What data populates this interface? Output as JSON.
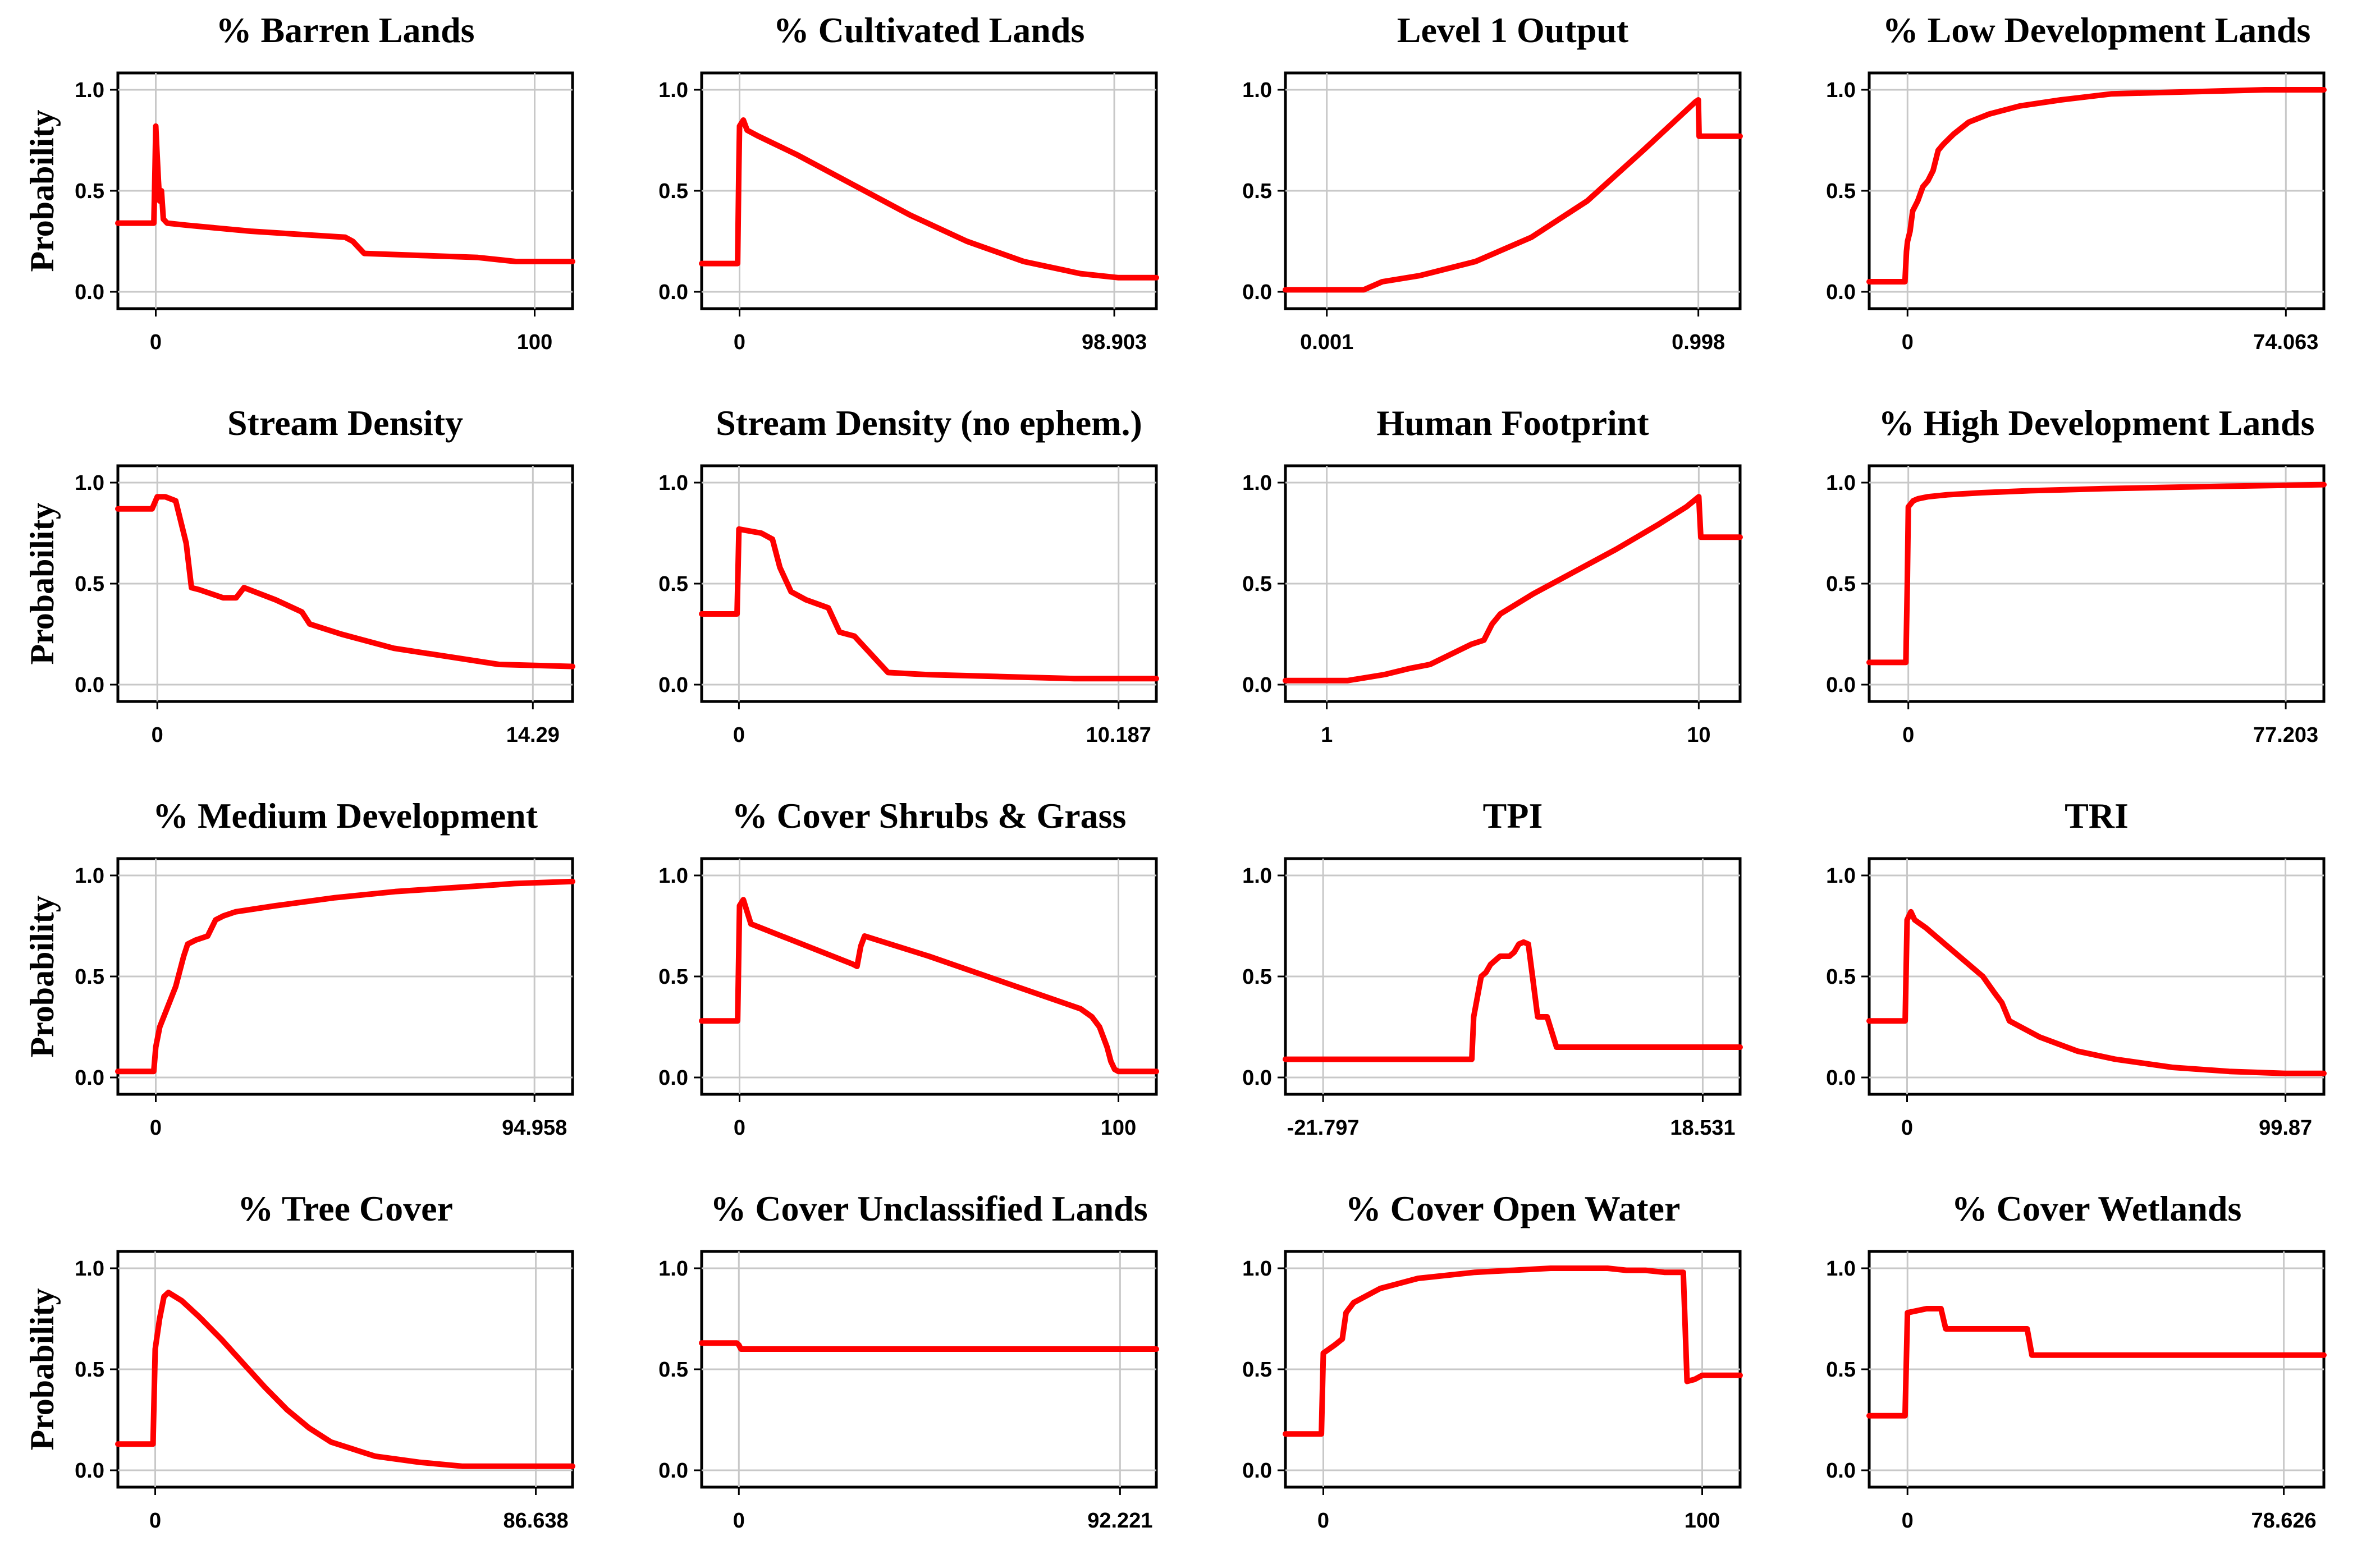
{
  "y_axis_label": "Probability",
  "y_ticks": [
    "0.0",
    "0.5",
    "1.0"
  ],
  "colors": {
    "curve": "#ff0000",
    "frame": "#000000",
    "grid": "#c8c8c8"
  },
  "chart_data": [
    {
      "type": "line",
      "title": "% Barren Lands",
      "x_ticks": [
        "0",
        "100"
      ],
      "ylabel": "Probability",
      "xlim": [
        -10,
        110
      ],
      "ylim": [
        0,
        1
      ],
      "x": [
        -10,
        -0.5,
        -0.2,
        0,
        0.3,
        0.7,
        1,
        1.5,
        2,
        3,
        8,
        25,
        50,
        52,
        55,
        70,
        85,
        95,
        110
      ],
      "y": [
        0.34,
        0.34,
        0.6,
        0.82,
        0.7,
        0.55,
        0.45,
        0.5,
        0.36,
        0.34,
        0.33,
        0.3,
        0.27,
        0.25,
        0.19,
        0.18,
        0.17,
        0.15,
        0.15
      ]
    },
    {
      "type": "line",
      "title": "% Cultivated Lands",
      "x_ticks": [
        "0",
        "98.903"
      ],
      "ylabel": "",
      "xlim": [
        -10,
        110
      ],
      "ylim": [
        0,
        1
      ],
      "x": [
        -10,
        -0.5,
        -0.2,
        0,
        1,
        2,
        5,
        15,
        30,
        45,
        60,
        75,
        90,
        100,
        110
      ],
      "y": [
        0.14,
        0.14,
        0.6,
        0.82,
        0.85,
        0.8,
        0.77,
        0.68,
        0.53,
        0.38,
        0.25,
        0.15,
        0.09,
        0.07,
        0.07
      ]
    },
    {
      "type": "line",
      "title": "Level 1 Output",
      "x_ticks": [
        "0.001",
        "0.998"
      ],
      "ylabel": "",
      "xlim": [
        -0.11,
        1.11
      ],
      "ylim": [
        0,
        1
      ],
      "x": [
        -0.11,
        0.1,
        0.15,
        0.25,
        0.4,
        0.55,
        0.7,
        0.85,
        0.99,
        0.998,
        1.0,
        1.11
      ],
      "y": [
        0.01,
        0.01,
        0.05,
        0.08,
        0.15,
        0.27,
        0.45,
        0.7,
        0.94,
        0.95,
        0.77,
        0.77
      ]
    },
    {
      "type": "line",
      "title": "% Low Development Lands",
      "x_ticks": [
        "0",
        "74.063"
      ],
      "ylabel": "",
      "xlim": [
        -7.5,
        81.5
      ],
      "ylim": [
        0,
        1
      ],
      "x": [
        -7.5,
        -0.5,
        -0.2,
        0,
        0.5,
        1,
        2,
        3,
        4,
        5,
        6,
        7,
        9,
        12,
        16,
        22,
        30,
        40,
        55,
        70,
        81.5
      ],
      "y": [
        0.05,
        0.05,
        0.2,
        0.25,
        0.3,
        0.4,
        0.45,
        0.52,
        0.55,
        0.6,
        0.7,
        0.73,
        0.78,
        0.84,
        0.88,
        0.92,
        0.95,
        0.98,
        0.99,
        1.0,
        1.0
      ]
    },
    {
      "type": "line",
      "title": "Stream Density",
      "x_ticks": [
        "0",
        "14.29"
      ],
      "ylabel": "Probability",
      "xlim": [
        -1.5,
        15.8
      ],
      "ylim": [
        0,
        1
      ],
      "x": [
        -1.5,
        -0.2,
        0,
        0.3,
        0.7,
        1.1,
        1.3,
        1.6,
        2.5,
        3,
        3.3,
        4.5,
        5.5,
        5.8,
        7,
        9,
        11,
        13,
        15.8
      ],
      "y": [
        0.87,
        0.87,
        0.93,
        0.93,
        0.91,
        0.7,
        0.48,
        0.47,
        0.43,
        0.43,
        0.48,
        0.42,
        0.36,
        0.3,
        0.25,
        0.18,
        0.14,
        0.1,
        0.09
      ]
    },
    {
      "type": "line",
      "title": "Stream Density (no ephem.)",
      "x_ticks": [
        "0",
        "10.187"
      ],
      "ylabel": "",
      "xlim": [
        -1,
        11.2
      ],
      "ylim": [
        0,
        1
      ],
      "x": [
        -1,
        -0.05,
        0,
        0.3,
        0.6,
        0.9,
        1.1,
        1.4,
        1.8,
        2.1,
        2.4,
        2.7,
        3.1,
        3.3,
        4,
        5,
        7,
        9,
        11.2
      ],
      "y": [
        0.35,
        0.35,
        0.77,
        0.76,
        0.75,
        0.72,
        0.58,
        0.46,
        0.42,
        0.4,
        0.38,
        0.26,
        0.24,
        0.2,
        0.06,
        0.05,
        0.04,
        0.03,
        0.03
      ]
    },
    {
      "type": "line",
      "title": "Human Footprint",
      "x_ticks": [
        "1",
        "10"
      ],
      "ylabel": "",
      "xlim": [
        0,
        11
      ],
      "ylim": [
        0,
        1
      ],
      "x": [
        0,
        1.5,
        2.4,
        3,
        3.5,
        4,
        4.5,
        4.8,
        5,
        5.2,
        6,
        7,
        8,
        9,
        9.7,
        10,
        10.05,
        11
      ],
      "y": [
        0.02,
        0.02,
        0.05,
        0.08,
        0.1,
        0.15,
        0.2,
        0.22,
        0.3,
        0.35,
        0.45,
        0.56,
        0.67,
        0.79,
        0.88,
        0.93,
        0.73,
        0.73
      ]
    },
    {
      "type": "line",
      "title": "% High Development Lands",
      "x_ticks": [
        "0",
        "77.203"
      ],
      "ylabel": "",
      "xlim": [
        -8,
        85
      ],
      "ylim": [
        0,
        1
      ],
      "x": [
        -8,
        -0.5,
        -0.2,
        0,
        1,
        2,
        4,
        8,
        15,
        25,
        40,
        60,
        85
      ],
      "y": [
        0.11,
        0.11,
        0.5,
        0.88,
        0.91,
        0.92,
        0.93,
        0.94,
        0.95,
        0.96,
        0.97,
        0.98,
        0.99
      ]
    },
    {
      "type": "line",
      "title": "% Medium  Development",
      "x_ticks": [
        "0",
        "94.958"
      ],
      "ylabel": "Probability",
      "xlim": [
        -9.5,
        104.5
      ],
      "ylim": [
        0,
        1
      ],
      "x": [
        -9.5,
        -0.5,
        0,
        1,
        2,
        3,
        5,
        7,
        8,
        10,
        13,
        15,
        17,
        20,
        30,
        45,
        60,
        75,
        90,
        104.5
      ],
      "y": [
        0.03,
        0.03,
        0.15,
        0.25,
        0.3,
        0.35,
        0.45,
        0.6,
        0.66,
        0.68,
        0.7,
        0.78,
        0.8,
        0.82,
        0.85,
        0.89,
        0.92,
        0.94,
        0.96,
        0.97
      ]
    },
    {
      "type": "line",
      "title": "%  Cover Shrubs & Grass",
      "x_ticks": [
        "0",
        "100"
      ],
      "ylabel": "",
      "xlim": [
        -10,
        110
      ],
      "ylim": [
        0,
        1
      ],
      "x": [
        -10,
        -0.5,
        0,
        1,
        2,
        3,
        30,
        31,
        32,
        33,
        50,
        70,
        90,
        93,
        95,
        97,
        98,
        99,
        100,
        110
      ],
      "y": [
        0.28,
        0.28,
        0.85,
        0.88,
        0.82,
        0.76,
        0.56,
        0.55,
        0.65,
        0.7,
        0.6,
        0.47,
        0.34,
        0.3,
        0.25,
        0.15,
        0.08,
        0.04,
        0.03,
        0.03
      ]
    },
    {
      "type": "line",
      "title": "TPI",
      "x_ticks": [
        "-21.797",
        "18.531"
      ],
      "ylabel": "",
      "xlim": [
        -25.8,
        22.5
      ],
      "ylim": [
        0,
        1
      ],
      "x": [
        -25.8,
        -6,
        -5.8,
        -5,
        -4.5,
        -4,
        -3,
        -2,
        -1.5,
        -1,
        -0.5,
        0,
        0.5,
        1,
        2,
        3,
        22.5
      ],
      "y": [
        0.09,
        0.09,
        0.3,
        0.5,
        0.52,
        0.56,
        0.6,
        0.6,
        0.62,
        0.66,
        0.67,
        0.66,
        0.48,
        0.3,
        0.3,
        0.15,
        0.15
      ]
    },
    {
      "type": "line",
      "title": "TRI",
      "x_ticks": [
        "0",
        "99.87"
      ],
      "ylabel": "",
      "xlim": [
        -10,
        110
      ],
      "ylim": [
        0,
        1
      ],
      "x": [
        -10,
        -0.5,
        0,
        1,
        2,
        5,
        10,
        20,
        23,
        25,
        27,
        30,
        35,
        45,
        55,
        70,
        85,
        99.87,
        110
      ],
      "y": [
        0.28,
        0.28,
        0.78,
        0.82,
        0.78,
        0.74,
        0.66,
        0.5,
        0.42,
        0.37,
        0.28,
        0.25,
        0.2,
        0.13,
        0.09,
        0.05,
        0.03,
        0.02,
        0.02
      ]
    },
    {
      "type": "line",
      "title": "% Tree Cover",
      "x_ticks": [
        "0",
        "86.638"
      ],
      "ylabel": "Probability",
      "xlim": [
        -8.5,
        95
      ],
      "ylim": [
        0,
        1
      ],
      "x": [
        -8.5,
        -0.5,
        0,
        1,
        2,
        3,
        6,
        10,
        15,
        20,
        25,
        30,
        35,
        40,
        50,
        60,
        70,
        80,
        86.6,
        95
      ],
      "y": [
        0.13,
        0.13,
        0.6,
        0.75,
        0.86,
        0.88,
        0.84,
        0.76,
        0.65,
        0.53,
        0.41,
        0.3,
        0.21,
        0.14,
        0.07,
        0.04,
        0.02,
        0.02,
        0.02,
        0.02
      ]
    },
    {
      "type": "line",
      "title": "% Cover Unclassified Lands",
      "x_ticks": [
        "0",
        "92.221"
      ],
      "ylabel": "",
      "xlim": [
        -9,
        101
      ],
      "ylim": [
        0,
        1
      ],
      "x": [
        -9,
        -0.5,
        0,
        0.5,
        30,
        60,
        101
      ],
      "y": [
        0.63,
        0.63,
        0.62,
        0.6,
        0.6,
        0.6,
        0.6
      ]
    },
    {
      "type": "line",
      "title": "% Cover Open Water",
      "x_ticks": [
        "0",
        "100"
      ],
      "ylabel": "",
      "xlim": [
        -10,
        110
      ],
      "ylim": [
        0,
        1
      ],
      "x": [
        -10,
        -0.5,
        0,
        3,
        5,
        6,
        8,
        15,
        25,
        40,
        60,
        75,
        80,
        85,
        90,
        95,
        96,
        98,
        100,
        110
      ],
      "y": [
        0.18,
        0.18,
        0.58,
        0.62,
        0.65,
        0.78,
        0.83,
        0.9,
        0.95,
        0.98,
        1.0,
        1.0,
        0.99,
        0.99,
        0.98,
        0.98,
        0.44,
        0.45,
        0.47,
        0.47
      ]
    },
    {
      "type": "line",
      "title": "% Cover Wetlands",
      "x_ticks": [
        "0",
        "78.626"
      ],
      "ylabel": "",
      "xlim": [
        -8,
        87
      ],
      "ylim": [
        0,
        1
      ],
      "x": [
        -8,
        -0.5,
        0,
        4,
        7,
        8,
        25,
        26,
        87
      ],
      "y": [
        0.27,
        0.27,
        0.78,
        0.8,
        0.8,
        0.7,
        0.7,
        0.57,
        0.57
      ]
    }
  ]
}
